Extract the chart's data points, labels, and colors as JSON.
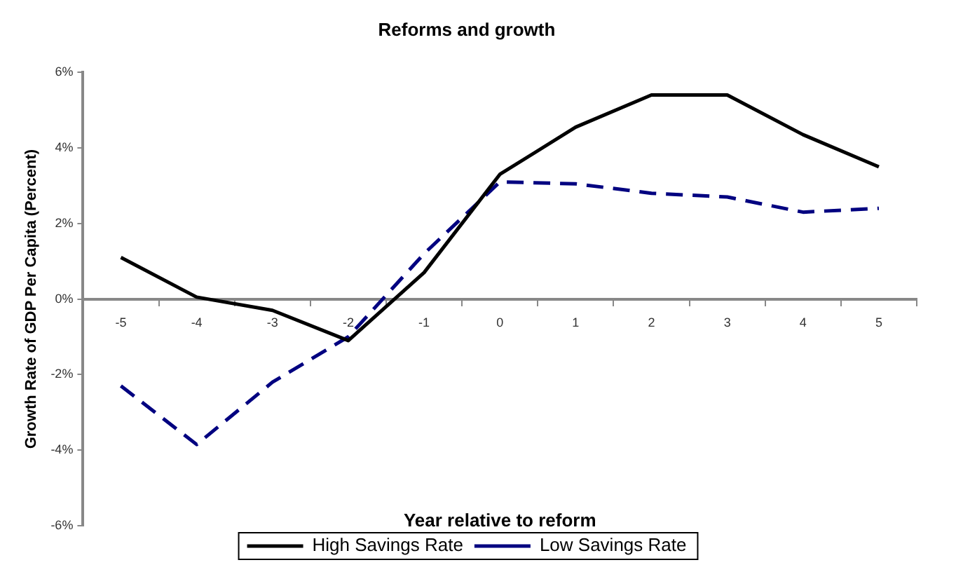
{
  "chart_data": {
    "type": "line",
    "title": "Reforms and growth",
    "xlabel": "Year relative to reform",
    "ylabel": "Growth Rate of GDP Per Capita (Percent)",
    "categories": [
      "-5",
      "-4",
      "-3",
      "-2",
      "-1",
      "0",
      "1",
      "2",
      "3",
      "4",
      "5"
    ],
    "series": [
      {
        "name": "High Savings Rate",
        "color": "#000000",
        "line_style": "solid",
        "values": [
          1.1,
          0.05,
          -0.3,
          -1.1,
          0.7,
          3.3,
          4.55,
          5.4,
          5.4,
          4.35,
          3.5
        ]
      },
      {
        "name": "Low Savings Rate",
        "color": "#000080",
        "line_style": "dashed",
        "values": [
          -2.3,
          -3.85,
          -2.2,
          -1.0,
          1.2,
          3.1,
          3.05,
          2.8,
          2.7,
          2.3,
          2.4
        ]
      }
    ],
    "ylim": [
      -6,
      6
    ],
    "yticks": [
      {
        "value": -6,
        "label": "-6%"
      },
      {
        "value": -4,
        "label": "-4%"
      },
      {
        "value": -2,
        "label": "-2%"
      },
      {
        "value": 0,
        "label": "0%"
      },
      {
        "value": 2,
        "label": "2%"
      },
      {
        "value": 4,
        "label": "4%"
      },
      {
        "value": 6,
        "label": "6%"
      }
    ],
    "grid": false,
    "legend": "bottom",
    "marker": "none"
  }
}
